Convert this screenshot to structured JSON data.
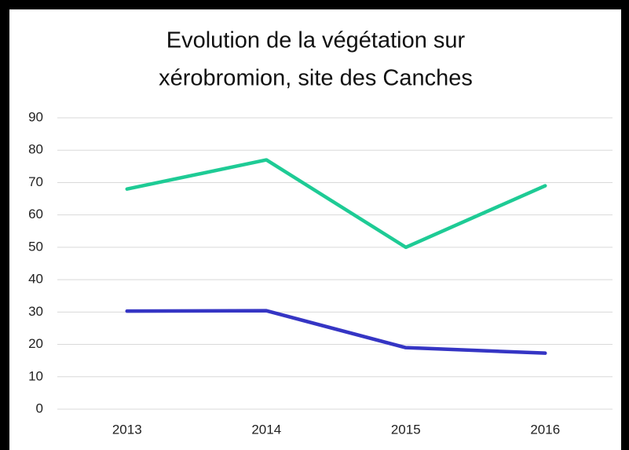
{
  "chart_data": {
    "type": "line",
    "title": [
      "Evolution de la végétation sur",
      "xérobromion, site des Canches"
    ],
    "categories": [
      "2013",
      "2014",
      "2015",
      "2016"
    ],
    "series": [
      {
        "color": "#1ecb95",
        "values": [
          68,
          77,
          50,
          69
        ]
      },
      {
        "color": "#3535c4",
        "values": [
          30.3,
          30.4,
          19,
          17.3
        ]
      }
    ],
    "ylim": [
      0,
      90
    ],
    "yticks": [
      0,
      10,
      20,
      30,
      40,
      50,
      60,
      70,
      80,
      90
    ],
    "grid": true
  }
}
